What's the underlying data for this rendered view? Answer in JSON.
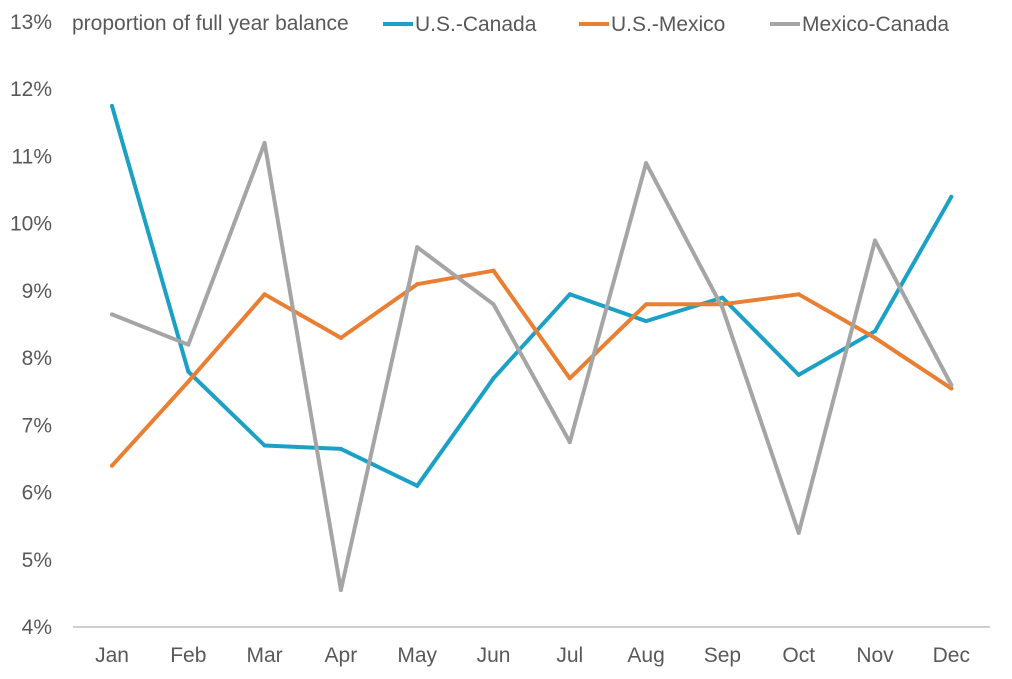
{
  "chart_data": {
    "type": "line",
    "title": "",
    "subtitle": "proportion of full year balance",
    "xlabel": "",
    "ylabel": "",
    "categories": [
      "Jan",
      "Feb",
      "Mar",
      "Apr",
      "May",
      "Jun",
      "Jul",
      "Aug",
      "Sep",
      "Oct",
      "Nov",
      "Dec"
    ],
    "ylim": [
      4,
      13
    ],
    "yticks": [
      4,
      5,
      6,
      7,
      8,
      9,
      10,
      11,
      12,
      13
    ],
    "ytick_labels": [
      "4%",
      "5%",
      "6%",
      "7%",
      "8%",
      "9%",
      "10%",
      "11%",
      "12%",
      "13%"
    ],
    "grid": false,
    "legend_position": "top",
    "series": [
      {
        "name": "U.S.-Canada",
        "color": "#1BA1C6",
        "values": [
          11.75,
          7.8,
          6.7,
          6.65,
          6.1,
          7.7,
          8.95,
          8.55,
          8.9,
          7.75,
          8.4,
          10.4
        ]
      },
      {
        "name": "U.S.-Mexico",
        "color": "#E97F33",
        "values": [
          6.4,
          7.65,
          8.95,
          8.3,
          9.1,
          9.3,
          7.7,
          8.8,
          8.8,
          8.95,
          8.3,
          7.55
        ]
      },
      {
        "name": "Mexico-Canada",
        "color": "#A5A5A5",
        "values": [
          8.65,
          8.2,
          11.2,
          4.55,
          9.65,
          8.8,
          6.75,
          10.9,
          8.75,
          5.4,
          9.75,
          7.6
        ]
      }
    ]
  }
}
